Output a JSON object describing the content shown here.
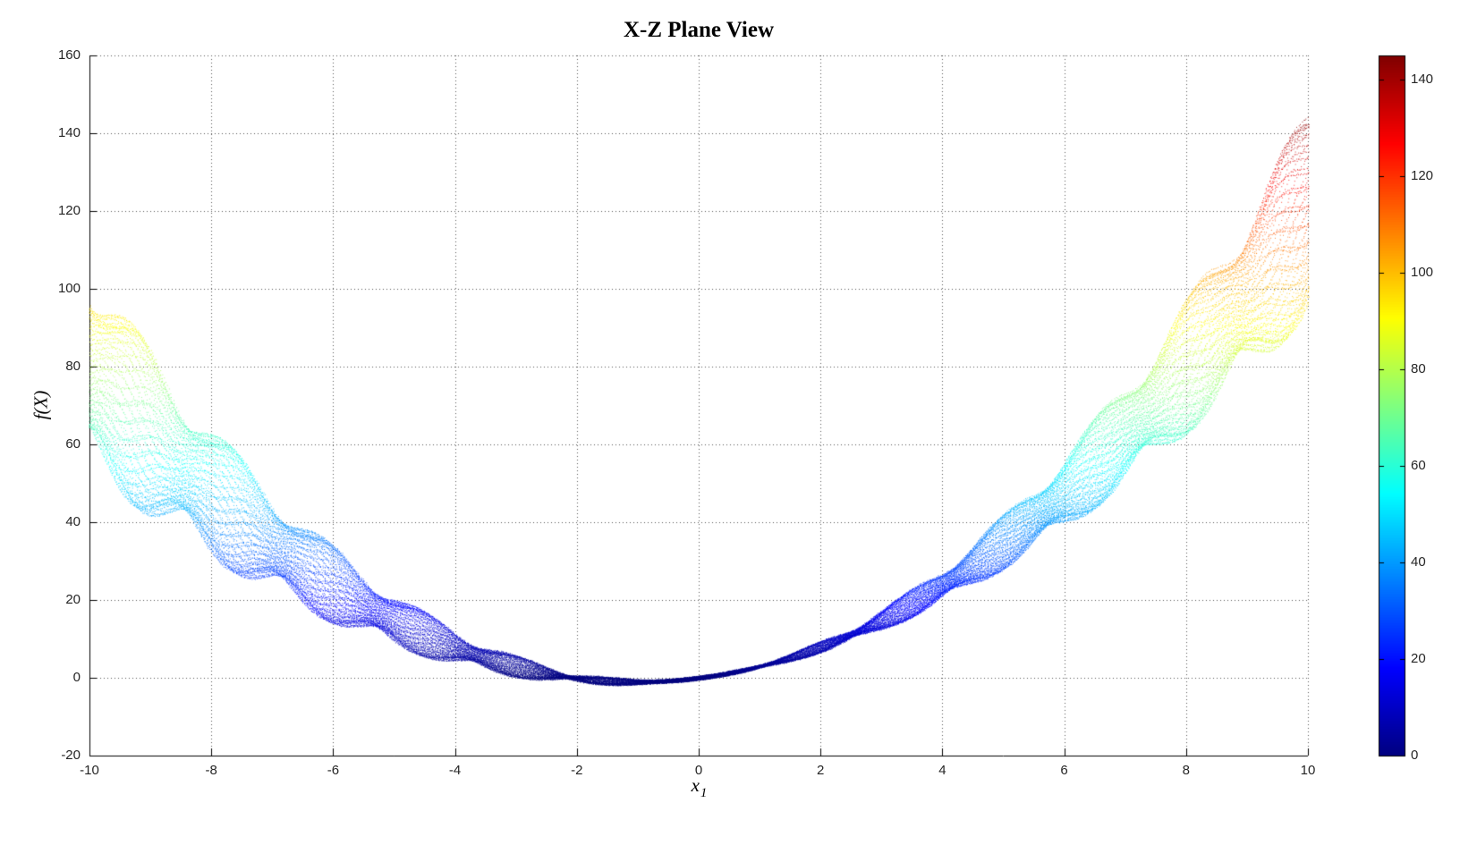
{
  "colors": {
    "background": "#ffffff",
    "axis": "#000000",
    "grid": "#555555",
    "tick_label": "#262626",
    "title_text": "#000000",
    "colormap_low": "#000080",
    "colormap_high": "#800000"
  },
  "chart_data": {
    "type": "scatter",
    "title": "X-Z Plane View",
    "xlabel": "x",
    "xlabel_subscript": "1",
    "ylabel": "f(X)",
    "xlim": [
      -10,
      10
    ],
    "ylim": [
      -20,
      160
    ],
    "xticks": [
      -10,
      -8,
      -6,
      -4,
      -2,
      0,
      2,
      4,
      6,
      8,
      10
    ],
    "xtick_labels": [
      "-10",
      "-8",
      "-6",
      "-4",
      "-2",
      "0",
      "2",
      "4",
      "6",
      "8",
      "10"
    ],
    "yticks": [
      -20,
      0,
      20,
      40,
      60,
      80,
      100,
      120,
      140,
      160
    ],
    "ytick_labels": [
      "-20",
      "0",
      "20",
      "40",
      "60",
      "80",
      "100",
      "120",
      "140",
      "160"
    ],
    "grid": true,
    "grid_style": "dotted",
    "legend": "none",
    "point_color_encoding": "f(X) value mapped to jet colormap",
    "colorbar": {
      "colormap": "jet",
      "min": 0,
      "max": 145,
      "ticks": [
        0,
        20,
        40,
        60,
        80,
        100,
        120,
        140
      ],
      "tick_labels": [
        "0",
        "20",
        "40",
        "60",
        "80",
        "100",
        "120",
        "140"
      ],
      "position": "right"
    },
    "envelope": {
      "x": [
        -10,
        -9,
        -8,
        -7,
        -6,
        -5,
        -4,
        -3,
        -2,
        -1,
        0,
        1,
        2,
        3,
        4,
        5,
        6,
        7,
        8,
        9,
        10
      ],
      "f_lower": [
        58,
        48,
        38,
        29,
        21,
        14,
        8,
        3,
        0,
        -1,
        -1,
        0,
        2,
        6,
        12,
        19,
        28,
        39,
        52,
        68,
        95
      ],
      "f_upper": [
        100,
        88,
        68,
        54,
        38,
        30,
        22,
        12,
        4,
        2,
        3,
        8,
        12,
        18,
        28,
        40,
        58,
        72,
        98,
        122,
        145
      ]
    },
    "generator": {
      "x1_range": [
        -10,
        10
      ],
      "x2_range": [
        -10,
        10
      ],
      "x1_steps": 760,
      "x2_slices": 56,
      "linear_coeff": 2.0,
      "spread_amp": 0.21,
      "spread_freq": 0.55,
      "spread_phase": 0.9,
      "ripple_scale": 0.055,
      "ripple_base": 0.4,
      "ripple_freq": 4.0,
      "ripple_x2_coupling": 0.6
    }
  }
}
